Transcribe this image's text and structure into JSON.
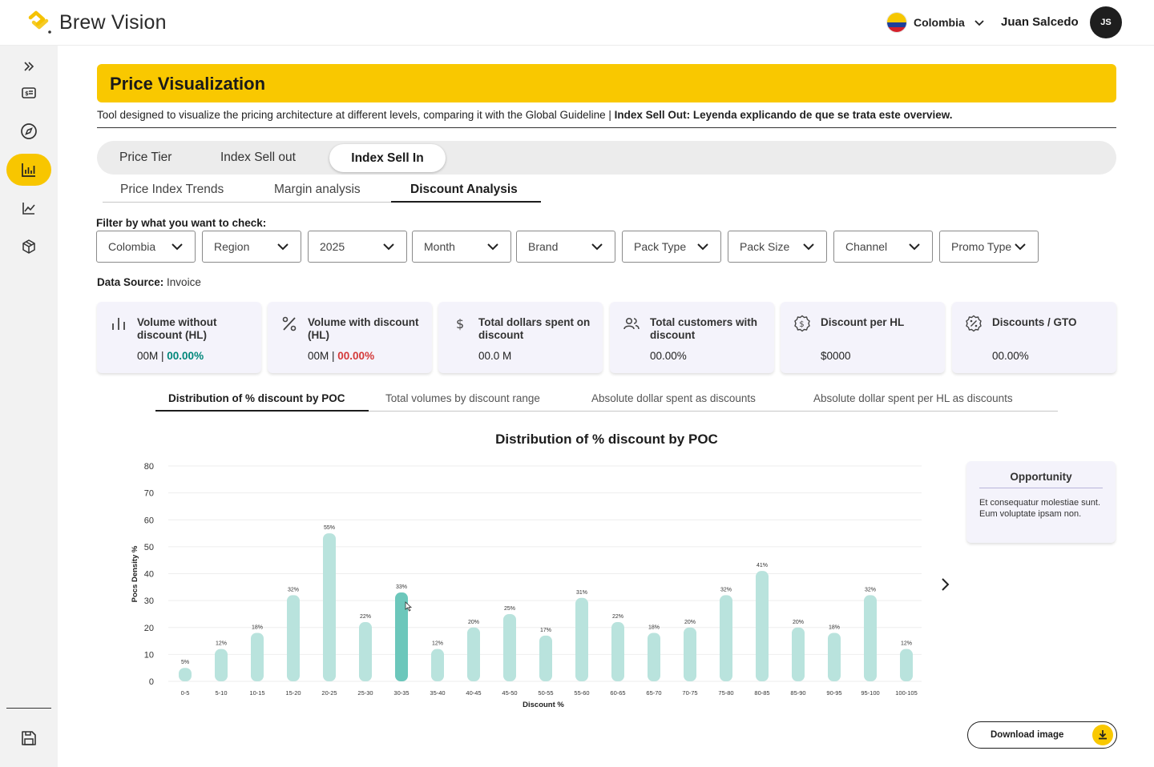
{
  "app": {
    "name": "Brew Vision"
  },
  "header": {
    "country": "Colombia",
    "user_name": "Juan Salcedo",
    "user_initials": "JS"
  },
  "sidebar": {
    "items": [
      {
        "icon": "expand-icon"
      },
      {
        "icon": "id-card-icon"
      },
      {
        "icon": "compass-icon"
      },
      {
        "icon": "bar-chart-icon",
        "active": true
      },
      {
        "icon": "line-chart-icon"
      },
      {
        "icon": "cube-icon"
      },
      {
        "icon": "save-icon"
      }
    ]
  },
  "page": {
    "title": "Price Visualization",
    "description": "Tool designed to visualize the pricing architecture at different levels, comparing it with the Global Guideline | ",
    "description_bold": "Index Sell Out: Leyenda explicando de que se trata este overview."
  },
  "main_tabs": [
    "Price Tier",
    "Index Sell out",
    "Index Sell In"
  ],
  "main_tab_active": "Index Sell In",
  "sub_tabs": [
    "Price Index Trends",
    "Margin analysis",
    "Discount Analysis"
  ],
  "sub_tab_active": "Discount Analysis",
  "filters": {
    "label": "Filter by what you want to check:",
    "items": [
      "Colombia",
      "Region",
      "2025",
      "Month",
      "Brand",
      "Pack Type",
      "Pack Size",
      "Channel",
      "Promo Type"
    ]
  },
  "data_source": {
    "label": "Data Source:",
    "value": "Invoice"
  },
  "kpis": [
    {
      "title": "Volume without discount (HL)",
      "value": "00M",
      "sep": " | ",
      "delta": "00.00%",
      "delta_color": "#00877a",
      "icon": "bar-chart-icon"
    },
    {
      "title": "Volume with discount (HL)",
      "value": "00M",
      "sep": " | ",
      "delta": "00.00%",
      "delta_color": "#d43a3a",
      "icon": "percent-icon"
    },
    {
      "title": "Total dollars spent on discount",
      "value": "00.0 M",
      "icon": "dollar-icon"
    },
    {
      "title": "Total customers with discount",
      "value": "00.00%",
      "icon": "users-icon"
    },
    {
      "title": "Discount per HL",
      "value": "$0000",
      "icon": "dollar-circle-icon"
    },
    {
      "title": "Discounts / GTO",
      "value": "00.00%",
      "icon": "discount-badge-icon"
    }
  ],
  "chart_tabs": [
    "Distribution of % discount by POC",
    "Total volumes by discount range",
    "Absolute dollar spent as discounts",
    "Absolute dollar spent per HL as discounts"
  ],
  "chart_tab_active": "Distribution of % discount by POC",
  "chart_data": {
    "type": "bar",
    "title": "Distribution of % discount by POC",
    "xlabel": "Discount %",
    "ylabel": "Pocs Density %",
    "ylim": [
      0,
      80
    ],
    "yticks": [
      0,
      10,
      20,
      30,
      40,
      50,
      60,
      70,
      80
    ],
    "categories": [
      "0-5",
      "5-10",
      "10-15",
      "15-20",
      "20-25",
      "25-30",
      "30-35",
      "35-40",
      "40-45",
      "45-50",
      "50-55",
      "55-60",
      "60-65",
      "65-70",
      "70-75",
      "75-80",
      "80-85",
      "85-90",
      "90-95",
      "95-100",
      "100-105"
    ],
    "values": [
      5,
      12,
      18,
      32,
      55,
      22,
      33,
      12,
      20,
      25,
      17,
      31,
      22,
      18,
      20,
      32,
      41,
      20,
      18,
      32,
      12
    ],
    "data_labels": [
      "5%",
      "12%",
      "18%",
      "32%",
      "55%",
      "22%",
      "33%",
      "12%",
      "20%",
      "25%",
      "17%",
      "31%",
      "22%",
      "18%",
      "20%",
      "32%",
      "41%",
      "20%",
      "18%",
      "32%",
      "12%"
    ],
    "highlighted_category": "30-35",
    "bar_color": "#b9e3dd",
    "highlight_color": "#6cc7bb",
    "grid": true
  },
  "opportunity": {
    "title": "Opportunity",
    "text": "Et consequatur molestiae sunt. Eum voluptate ipsam non."
  },
  "download": {
    "label": "Download image"
  },
  "colors": {
    "accent": "#f9c800",
    "positive": "#00877a",
    "negative": "#d43a3a"
  }
}
